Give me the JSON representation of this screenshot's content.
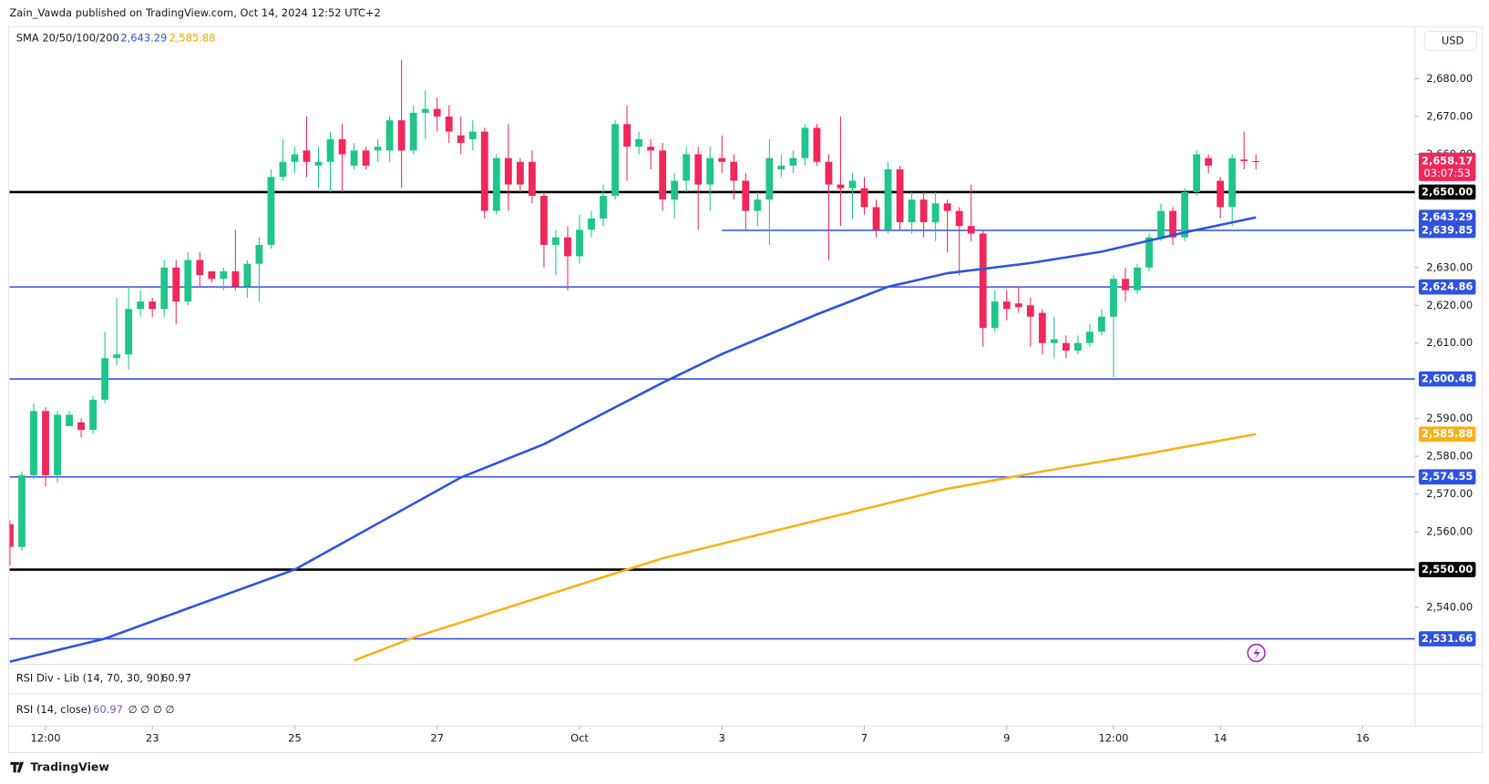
{
  "chart_data": {
    "type": "candlestick",
    "title": "Zain_Vawda published on TradingView.com, Oct 14, 2024 12:52 UTC+2",
    "indicator_label": "SMA 20/50/100/200",
    "currency": "USD",
    "rsi_div_label": "RSI Div - Lib (14, 70, 30, 90)",
    "rsi_div_value": "60.97",
    "rsi_label": "RSI (14, close)",
    "rsi_value": "60.97",
    "rsi_extras": "∅ ∅ ∅ ∅",
    "brand": "TradingView",
    "up_color": "#1fc58a",
    "down_color": "#f0285a",
    "close_label": "2,658.17",
    "countdown": "03:07:53",
    "candles": [
      [
        2562,
        2563,
        2551,
        2556
      ],
      [
        2556,
        2576,
        2555,
        2575
      ],
      [
        2575,
        2594,
        2574,
        2592
      ],
      [
        2592,
        2593,
        2572,
        2575
      ],
      [
        2575,
        2592,
        2573,
        2591
      ],
      [
        2588,
        2592,
        2588,
        2591
      ],
      [
        2589,
        2590,
        2585,
        2587
      ],
      [
        2587,
        2596,
        2586,
        2595
      ],
      [
        2595,
        2613,
        2594,
        2606
      ],
      [
        2606,
        2622,
        2604,
        2607
      ],
      [
        2607,
        2625,
        2603,
        2619
      ],
      [
        2619,
        2624,
        2617,
        2621
      ],
      [
        2621,
        2622,
        2617,
        2619
      ],
      [
        2619,
        2632,
        2617,
        2630
      ],
      [
        2630,
        2632,
        2615,
        2621
      ],
      [
        2621,
        2634,
        2620,
        2632
      ],
      [
        2632,
        2634,
        2625,
        2628
      ],
      [
        2629,
        2629,
        2626,
        2627
      ],
      [
        2627,
        2630,
        2624,
        2629
      ],
      [
        2629,
        2640,
        2624,
        2625
      ],
      [
        2625,
        2632,
        2622,
        2631
      ],
      [
        2631,
        2638,
        2621,
        2636
      ],
      [
        2636,
        2656,
        2635,
        2654
      ],
      [
        2654,
        2664,
        2653,
        2658
      ],
      [
        2658,
        2662,
        2655,
        2660
      ],
      [
        2661,
        2670,
        2654,
        2658
      ],
      [
        2657,
        2662,
        2651,
        2658
      ],
      [
        2658,
        2666,
        2650,
        2664
      ],
      [
        2664,
        2668,
        2650,
        2660
      ],
      [
        2657,
        2663,
        2656,
        2661
      ],
      [
        2661,
        2662,
        2656,
        2657
      ],
      [
        2661,
        2664,
        2658,
        2662
      ],
      [
        2661,
        2670,
        2658,
        2669
      ],
      [
        2669,
        2685,
        2651,
        2661
      ],
      [
        2661,
        2673,
        2660,
        2671
      ],
      [
        2671,
        2677,
        2664,
        2672
      ],
      [
        2672,
        2675,
        2666,
        2670
      ],
      [
        2670,
        2673,
        2663,
        2666
      ],
      [
        2665,
        2670,
        2660,
        2663
      ],
      [
        2664,
        2669,
        2661,
        2666
      ],
      [
        2666,
        2667,
        2643,
        2645
      ],
      [
        2645,
        2660,
        2644,
        2659
      ],
      [
        2659,
        2668,
        2645,
        2652
      ],
      [
        2658,
        2659,
        2650,
        2652
      ],
      [
        2658,
        2661,
        2647,
        2649
      ],
      [
        2649,
        2650,
        2630,
        2636
      ],
      [
        2636,
        2640,
        2628,
        2638
      ],
      [
        2638,
        2641,
        2624,
        2633
      ],
      [
        2633,
        2644,
        2631,
        2640
      ],
      [
        2640,
        2645,
        2638,
        2643
      ],
      [
        2643,
        2652,
        2641,
        2649
      ],
      [
        2649,
        2669,
        2648,
        2668
      ],
      [
        2668,
        2673,
        2653,
        2662
      ],
      [
        2662,
        2666,
        2660,
        2664
      ],
      [
        2662,
        2664,
        2656,
        2661
      ],
      [
        2661,
        2663,
        2645,
        2648
      ],
      [
        2648,
        2655,
        2643,
        2653
      ],
      [
        2653,
        2662,
        2650,
        2660
      ],
      [
        2660,
        2662,
        2640,
        2652
      ],
      [
        2652,
        2662,
        2645,
        2659
      ],
      [
        2659,
        2665,
        2655,
        2658
      ],
      [
        2658,
        2660,
        2648,
        2653
      ],
      [
        2653,
        2655,
        2640,
        2645
      ],
      [
        2645,
        2650,
        2641,
        2648
      ],
      [
        2648,
        2664,
        2636,
        2659
      ],
      [
        2656,
        2660,
        2654,
        2657
      ],
      [
        2657,
        2661,
        2655,
        2659
      ],
      [
        2659,
        2668,
        2657,
        2667
      ],
      [
        2667,
        2668,
        2657,
        2658
      ],
      [
        2658,
        2660,
        2632,
        2652
      ],
      [
        2652,
        2670,
        2641,
        2651
      ],
      [
        2651,
        2655,
        2643,
        2653
      ],
      [
        2651,
        2654,
        2644,
        2646
      ],
      [
        2646,
        2648,
        2638,
        2640
      ],
      [
        2640,
        2658,
        2639,
        2656
      ],
      [
        2656,
        2657,
        2640,
        2642
      ],
      [
        2642,
        2650,
        2639,
        2648
      ],
      [
        2648,
        2650,
        2638,
        2642
      ],
      [
        2642,
        2650,
        2637,
        2647
      ],
      [
        2647,
        2648,
        2634,
        2645
      ],
      [
        2645,
        2646,
        2628,
        2641
      ],
      [
        2641,
        2652,
        2637,
        2639
      ],
      [
        2639,
        2640,
        2609,
        2614
      ],
      [
        2614,
        2624,
        2613,
        2621
      ],
      [
        2621,
        2624,
        2616,
        2619
      ],
      [
        2620.5,
        2625,
        2618,
        2619.5
      ],
      [
        2620,
        2622,
        2609,
        2617
      ],
      [
        2618,
        2619,
        2607,
        2610
      ],
      [
        2610,
        2617,
        2606,
        2611
      ],
      [
        2610,
        2612,
        2606,
        2608
      ],
      [
        2608,
        2612,
        2607,
        2610
      ],
      [
        2610,
        2615,
        2609,
        2613
      ],
      [
        2613,
        2619,
        2612,
        2617
      ],
      [
        2617,
        2628,
        2601,
        2627
      ],
      [
        2627,
        2630,
        2621,
        2624
      ],
      [
        2624,
        2631,
        2623,
        2630
      ],
      [
        2630,
        2639,
        2629,
        2638
      ],
      [
        2638,
        2647,
        2637,
        2645
      ],
      [
        2645,
        2646,
        2636,
        2638
      ],
      [
        2638,
        2651,
        2637,
        2650
      ],
      [
        2650,
        2661,
        2649,
        2660
      ],
      [
        2659,
        2660,
        2655,
        2657
      ],
      [
        2653,
        2654,
        2643,
        2646
      ],
      [
        2646,
        2660,
        2641,
        2659
      ],
      [
        2658.6,
        2666,
        2656,
        2658.2
      ],
      [
        2658.2,
        2660,
        2656,
        2658.17
      ]
    ],
    "series": [
      {
        "color": "#2f52e0",
        "last_label": "2,643.29",
        "x": [
          0,
          8,
          24,
          38,
          45,
          55,
          60,
          68,
          74,
          79,
          86,
          92,
          99,
          105
        ],
        "values": [
          2525.6,
          2531.7,
          2550,
          2574.4,
          2583.2,
          2599.5,
          2607.1,
          2617.6,
          2624.9,
          2628.5,
          2631.2,
          2634.2,
          2639.3,
          2643.29
        ]
      },
      {
        "color": "#f5b21b",
        "last_label": "2,585.88",
        "x": [
          29,
          34,
          47,
          55,
          68,
          79,
          87,
          95,
          105
        ],
        "values": [
          2525.9,
          2532,
          2545,
          2553,
          2563,
          2571.4,
          2576,
          2580.2,
          2585.88
        ]
      }
    ],
    "levels": [
      {
        "value": 2650,
        "label": "2,650.00",
        "color": "#000000"
      },
      {
        "value": 2639.85,
        "label": "2,639.85",
        "color": "#2f52e0",
        "from": 60
      },
      {
        "value": 2624.86,
        "label": "2,624.86",
        "color": "#2f52e0"
      },
      {
        "value": 2600.48,
        "label": "2,600.48",
        "color": "#2f52e0"
      },
      {
        "value": 2574.55,
        "label": "2,574.55",
        "color": "#2f52e0"
      },
      {
        "value": 2550,
        "label": "2,550.00",
        "color": "#000000"
      },
      {
        "value": 2531.66,
        "label": "2,531.66",
        "color": "#2f52e0"
      }
    ],
    "xlim": [
      -0.04,
      118.4
    ],
    "ylim": [
      2524.9,
      2693.3
    ],
    "yticks": [
      {
        "value": 2680,
        "label": "2,680.00"
      },
      {
        "value": 2670,
        "label": "2,670.00"
      },
      {
        "value": 2660,
        "label": "2,660.00"
      },
      {
        "value": 2630,
        "label": "2,630.00"
      },
      {
        "value": 2620,
        "label": "2,620.00"
      },
      {
        "value": 2610,
        "label": "2,610.00"
      },
      {
        "value": 2590,
        "label": "2,590.00"
      },
      {
        "value": 2580,
        "label": "2,580.00"
      },
      {
        "value": 2570,
        "label": "2,570.00"
      },
      {
        "value": 2560,
        "label": "2,560.00"
      },
      {
        "value": 2540,
        "label": "2,540.00"
      }
    ],
    "xticks": [
      {
        "value": 3,
        "label": "12:00"
      },
      {
        "value": 12,
        "label": "23"
      },
      {
        "value": 24,
        "label": "25"
      },
      {
        "value": 36,
        "label": "27"
      },
      {
        "value": 48,
        "label": "Oct"
      },
      {
        "value": 60,
        "label": "3"
      },
      {
        "value": 72,
        "label": "7"
      },
      {
        "value": 84,
        "label": "9"
      },
      {
        "value": 93,
        "label": "12:00"
      },
      {
        "value": 102,
        "label": "14"
      },
      {
        "value": 114,
        "label": "16"
      }
    ]
  }
}
